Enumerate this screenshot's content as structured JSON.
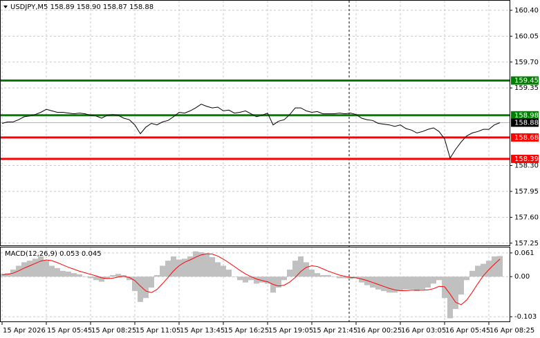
{
  "chart_data": [
    {
      "type": "line",
      "title": "USDJPY,M5  158.89 158.90 158.87 158.88",
      "color": "#000000",
      "values": [
        158.87,
        158.89,
        158.89,
        158.92,
        158.96,
        158.97,
        158.99,
        159.02,
        159.06,
        159.04,
        159.02,
        159.02,
        159.01,
        159.0,
        159.01,
        159.0,
        158.98,
        158.97,
        158.94,
        158.98,
        158.99,
        158.98,
        158.94,
        158.92,
        158.85,
        158.73,
        158.82,
        158.87,
        158.85,
        158.89,
        158.91,
        158.96,
        159.02,
        159.01,
        159.04,
        159.08,
        159.13,
        159.1,
        159.08,
        159.09,
        159.04,
        159.05,
        159.01,
        159.02,
        159.04,
        159.0,
        158.96,
        158.98,
        159.01,
        158.85,
        158.9,
        158.92,
        158.99,
        159.08,
        159.08,
        159.04,
        159.02,
        159.03,
        159.0,
        159.0,
        159.0,
        159.01,
        159.0,
        159.01,
        158.99,
        158.94,
        158.92,
        158.91,
        158.87,
        158.86,
        158.85,
        158.83,
        158.85,
        158.8,
        158.78,
        158.74,
        158.76,
        158.79,
        158.81,
        158.76,
        158.66,
        158.4,
        158.52,
        158.62,
        158.7,
        158.74,
        158.76,
        158.79,
        158.79,
        158.85,
        158.88
      ],
      "ylim": [
        157.22,
        160.53
      ],
      "yticks": [
        {
          "value": 157.25,
          "label": "157.25"
        },
        {
          "value": 157.6,
          "label": "157.60"
        },
        {
          "value": 157.95,
          "label": "157.95"
        },
        {
          "value": 158.3,
          "label": "158.30"
        },
        {
          "value": 159.35,
          "label": "159.35"
        },
        {
          "value": 159.7,
          "label": "159.70"
        },
        {
          "value": 160.05,
          "label": "160.05"
        },
        {
          "value": 160.4,
          "label": "160.40"
        }
      ],
      "levels": [
        {
          "value": 159.45,
          "color": "#008000"
        },
        {
          "value": 158.98,
          "color": "#008000"
        },
        {
          "value": 158.68,
          "color": "#ff0000"
        },
        {
          "value": 158.39,
          "color": "#ff0000"
        }
      ],
      "last_price": 158.88,
      "grid": true
    },
    {
      "type": "macd",
      "title": "MACD(12,26,9) 0.053 0.045",
      "categories": [
        "15 Apr 2026",
        null,
        null,
        null,
        null,
        null,
        null,
        null,
        "15 Apr 05:45",
        null,
        null,
        null,
        null,
        null,
        null,
        null,
        "15 Apr 08:25",
        null,
        null,
        null,
        null,
        null,
        null,
        null,
        "15 Apr 11:05",
        null,
        null,
        null,
        null,
        null,
        null,
        null,
        "15 Apr 13:45",
        null,
        null,
        null,
        null,
        null,
        null,
        null,
        "15 Apr 16:25",
        null,
        null,
        null,
        null,
        null,
        null,
        null,
        "15 Apr 19:05",
        null,
        null,
        null,
        null,
        null,
        null,
        null,
        "15 Apr 21:45",
        null,
        null,
        null,
        null,
        null,
        null,
        null,
        "16 Apr 00:25",
        null,
        null,
        null,
        null,
        null,
        null,
        null,
        "16 Apr 03:05",
        null,
        null,
        null,
        null,
        null,
        null,
        null,
        "16 Apr 05:45",
        null,
        null,
        null,
        null,
        null,
        null,
        null,
        "16 Apr 08:25",
        null,
        null
      ],
      "histogram": {
        "color": "#c0c0c0",
        "values": [
          0.007,
          0.009,
          0.018,
          0.028,
          0.037,
          0.041,
          0.046,
          0.052,
          0.041,
          0.028,
          0.022,
          0.015,
          0.013,
          0.009,
          0.006,
          0,
          -0.004,
          -0.009,
          -0.013,
          -0.006,
          0.004,
          0.007,
          0.004,
          -0.009,
          -0.037,
          -0.065,
          -0.055,
          -0.028,
          0.004,
          0.028,
          0.041,
          0.052,
          0.044,
          0.046,
          0.052,
          0.065,
          0.063,
          0.059,
          0.05,
          0.037,
          0.028,
          0.018,
          0,
          -0.009,
          -0.015,
          -0.009,
          -0.018,
          -0.015,
          -0.018,
          -0.041,
          -0.028,
          -0.009,
          0.018,
          0.041,
          0.052,
          0.037,
          0.018,
          0.009,
          0.004,
          0.004,
          0,
          -0.004,
          -0.004,
          -0.006,
          -0.004,
          -0.015,
          -0.022,
          -0.028,
          -0.033,
          -0.037,
          -0.041,
          -0.041,
          -0.037,
          -0.033,
          -0.033,
          -0.037,
          -0.033,
          -0.028,
          -0.018,
          -0.009,
          -0.055,
          -0.107,
          -0.083,
          -0.046,
          -0.009,
          0.015,
          0.028,
          0.033,
          0.041,
          0.052,
          0.053
        ]
      },
      "signal": {
        "color": "#ff0000",
        "values": [
          0.005,
          0.006,
          0.009,
          0.015,
          0.022,
          0.028,
          0.034,
          0.04,
          0.043,
          0.041,
          0.036,
          0.03,
          0.024,
          0.019,
          0.014,
          0.01,
          0.006,
          0.002,
          -0.003,
          -0.005,
          -0.004,
          -0.001,
          0.001,
          -0.002,
          -0.01,
          -0.024,
          -0.037,
          -0.041,
          -0.033,
          -0.018,
          -0.002,
          0.015,
          0.028,
          0.037,
          0.043,
          0.05,
          0.056,
          0.059,
          0.058,
          0.053,
          0.045,
          0.036,
          0.026,
          0.016,
          0.007,
          0,
          -0.006,
          -0.01,
          -0.013,
          -0.02,
          -0.024,
          -0.022,
          -0.014,
          -0.002,
          0.013,
          0.024,
          0.028,
          0.026,
          0.02,
          0.014,
          0.009,
          0.004,
          0.001,
          -0.002,
          -0.003,
          -0.006,
          -0.01,
          -0.015,
          -0.02,
          -0.025,
          -0.03,
          -0.034,
          -0.036,
          -0.036,
          -0.035,
          -0.035,
          -0.035,
          -0.034,
          -0.031,
          -0.025,
          -0.026,
          -0.045,
          -0.066,
          -0.072,
          -0.06,
          -0.04,
          -0.018,
          0.002,
          0.018,
          0.032,
          0.045
        ]
      },
      "ylim": [
        -0.115,
        0.075
      ],
      "yticks": [
        0.061,
        {
          "value": 0,
          "label": "0.00"
        },
        -0.103
      ],
      "grid": true
    }
  ]
}
